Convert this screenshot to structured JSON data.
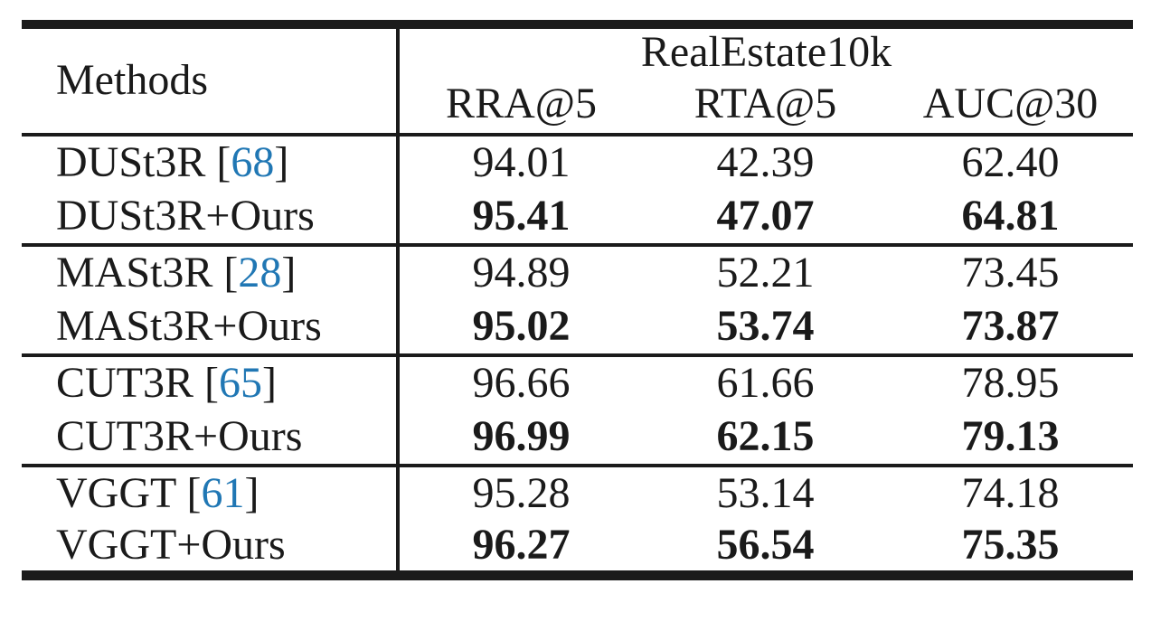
{
  "table": {
    "header": {
      "methods_label": "Methods",
      "dataset_label": "RealEstate10k",
      "metric_columns": [
        "RRA@5",
        "RTA@5",
        "AUC@30"
      ]
    },
    "colors": {
      "citation_blue": "#2077B4",
      "rule_black": "#1b1b1b"
    },
    "groups": [
      {
        "rows": [
          {
            "prefix": "DUSt3R [",
            "cite": "68",
            "suffix": "]",
            "bold": false,
            "values": [
              "94.01",
              "42.39",
              "62.40"
            ]
          },
          {
            "prefix": "DUSt3R+Ours",
            "cite": "",
            "suffix": "",
            "bold": true,
            "values": [
              "95.41",
              "47.07",
              "64.81"
            ]
          }
        ]
      },
      {
        "rows": [
          {
            "prefix": "MASt3R [",
            "cite": "28",
            "suffix": "]",
            "bold": false,
            "values": [
              "94.89",
              "52.21",
              "73.45"
            ]
          },
          {
            "prefix": "MASt3R+Ours",
            "cite": "",
            "suffix": "",
            "bold": true,
            "values": [
              "95.02",
              "53.74",
              "73.87"
            ]
          }
        ]
      },
      {
        "rows": [
          {
            "prefix": "CUT3R [",
            "cite": "65",
            "suffix": "]",
            "bold": false,
            "values": [
              "96.66",
              "61.66",
              "78.95"
            ]
          },
          {
            "prefix": "CUT3R+Ours",
            "cite": "",
            "suffix": "",
            "bold": true,
            "values": [
              "96.99",
              "62.15",
              "79.13"
            ]
          }
        ]
      },
      {
        "rows": [
          {
            "prefix": "VGGT [",
            "cite": "61",
            "suffix": "]",
            "bold": false,
            "values": [
              "95.28",
              "53.14",
              "74.18"
            ]
          },
          {
            "prefix": "VGGT+Ours",
            "cite": "",
            "suffix": "",
            "bold": true,
            "values": [
              "96.27",
              "56.54",
              "75.35"
            ]
          }
        ]
      }
    ]
  }
}
